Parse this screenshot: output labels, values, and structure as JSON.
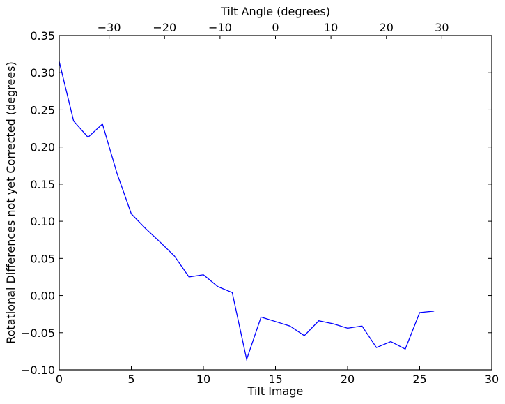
{
  "chart_data": {
    "type": "line",
    "xlabel": "Tilt Image",
    "ylabel": "Rotational Differences not yet Corrected (degrees)",
    "top_xlabel": "Tilt Angle (degrees)",
    "xlim": [
      0,
      30
    ],
    "ylim": [
      -0.1,
      0.35
    ],
    "top_xlim": [
      -39,
      39
    ],
    "xticks": [
      0,
      5,
      10,
      15,
      20,
      25,
      30
    ],
    "xtick_labels": [
      "0",
      "5",
      "10",
      "15",
      "20",
      "25",
      "30"
    ],
    "yticks": [
      -0.1,
      -0.05,
      0.0,
      0.05,
      0.1,
      0.15,
      0.2,
      0.25,
      0.3,
      0.35
    ],
    "ytick_labels": [
      "−0.10",
      "−0.05",
      "0.00",
      "0.05",
      "0.10",
      "0.15",
      "0.20",
      "0.25",
      "0.30",
      "0.35"
    ],
    "top_xticks": [
      -30,
      -20,
      -10,
      0,
      10,
      20,
      30
    ],
    "top_xtick_labels": [
      "−30",
      "−20",
      "−10",
      "0",
      "10",
      "20",
      "30"
    ],
    "line_color": "#0000ff",
    "grid": false,
    "series": [
      {
        "x": [
          0,
          1,
          2,
          3,
          4,
          5,
          6,
          7,
          8,
          9,
          10,
          11,
          12,
          13,
          14,
          15,
          16,
          17,
          18,
          19,
          20,
          21,
          22,
          23,
          24,
          25,
          26
        ],
        "values": [
          0.315,
          0.235,
          0.213,
          0.231,
          0.165,
          0.11,
          0.09,
          0.072,
          0.053,
          0.025,
          0.028,
          0.012,
          0.004,
          -0.086,
          -0.029,
          -0.035,
          -0.041,
          -0.054,
          -0.034,
          -0.038,
          -0.044,
          -0.041,
          -0.07,
          -0.062,
          -0.072,
          -0.023,
          -0.021
        ]
      }
    ]
  }
}
